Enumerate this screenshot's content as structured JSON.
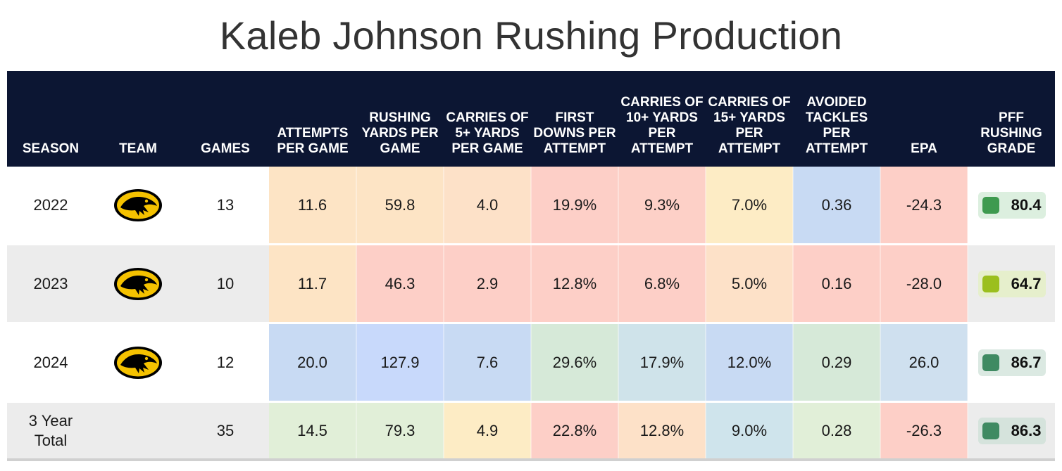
{
  "title": "Kaleb Johnson Rushing Production",
  "chart_data": {
    "type": "table",
    "title": "Kaleb Johnson Rushing Production",
    "columns": [
      "SEASON",
      "TEAM",
      "GAMES",
      "ATTEMPTS PER GAME",
      "RUSHING YARDS PER GAME",
      "CARRIES OF 5+ YARDS PER GAME",
      "FIRST DOWNS PER ATTEMPT",
      "CARRIES OF 10+ YARDS PER ATTEMPT",
      "CARRIES OF 15+ YARDS PER ATTEMPT",
      "AVOIDED TACKLES PER ATTEMPT",
      "EPA",
      "PFF RUSHING GRADE"
    ],
    "rows": [
      {
        "season": "2022",
        "team_logo": "iowa-hawkeyes-logo",
        "games": "13",
        "metrics": [
          {
            "value": "11.6",
            "color": "#fde4c5"
          },
          {
            "value": "59.8",
            "color": "#fde4c5"
          },
          {
            "value": "4.0",
            "color": "#fde1c8"
          },
          {
            "value": "19.9%",
            "color": "#fdcfc7"
          },
          {
            "value": "9.3%",
            "color": "#fdd0c7"
          },
          {
            "value": "7.0%",
            "color": "#fdecc5"
          },
          {
            "value": "0.36",
            "color": "#c8daf3"
          },
          {
            "value": "-24.3",
            "color": "#fdcfc7"
          }
        ],
        "grade": {
          "value": "80.4",
          "dot_color": "#3e9a4f",
          "box_color": "#dcefdf"
        }
      },
      {
        "season": "2023",
        "team_logo": "iowa-hawkeyes-logo",
        "games": "10",
        "metrics": [
          {
            "value": "11.7",
            "color": "#fde4c5"
          },
          {
            "value": "46.3",
            "color": "#fdcfc7"
          },
          {
            "value": "2.9",
            "color": "#fdcfc7"
          },
          {
            "value": "12.8%",
            "color": "#fdcfc7"
          },
          {
            "value": "6.8%",
            "color": "#fdcfc7"
          },
          {
            "value": "5.0%",
            "color": "#fde1c8"
          },
          {
            "value": "0.16",
            "color": "#fdcfc7"
          },
          {
            "value": "-28.0",
            "color": "#fdcfc7"
          }
        ],
        "grade": {
          "value": "64.7",
          "dot_color": "#9bbf1e",
          "box_color": "#e6efcc"
        }
      },
      {
        "season": "2024",
        "team_logo": "iowa-hawkeyes-logo",
        "games": "12",
        "metrics": [
          {
            "value": "20.0",
            "color": "#c8daf3"
          },
          {
            "value": "127.9",
            "color": "#c8d9fb"
          },
          {
            "value": "7.6",
            "color": "#c8daf3"
          },
          {
            "value": "29.6%",
            "color": "#d6e9d8"
          },
          {
            "value": "17.9%",
            "color": "#cfe3ea"
          },
          {
            "value": "12.0%",
            "color": "#c8daf3"
          },
          {
            "value": "0.29",
            "color": "#d6e9d8"
          },
          {
            "value": "26.0",
            "color": "#cfe0ef"
          }
        ],
        "grade": {
          "value": "86.7",
          "dot_color": "#3f8a62",
          "box_color": "#dbe9e2"
        }
      },
      {
        "season": "3 Year Total",
        "team_logo": "",
        "games": "35",
        "metrics": [
          {
            "value": "14.5",
            "color": "#e1efd8"
          },
          {
            "value": "79.3",
            "color": "#e1efd8"
          },
          {
            "value": "4.9",
            "color": "#fdecc5"
          },
          {
            "value": "22.8%",
            "color": "#fdcfc7"
          },
          {
            "value": "12.8%",
            "color": "#fde1c8"
          },
          {
            "value": "9.0%",
            "color": "#cfe4ec"
          },
          {
            "value": "0.28",
            "color": "#e1efd8"
          },
          {
            "value": "-26.3",
            "color": "#fdcfc7"
          }
        ],
        "grade": {
          "value": "86.3",
          "dot_color": "#3f8a62",
          "box_color": "#d5e3dc"
        }
      }
    ]
  }
}
